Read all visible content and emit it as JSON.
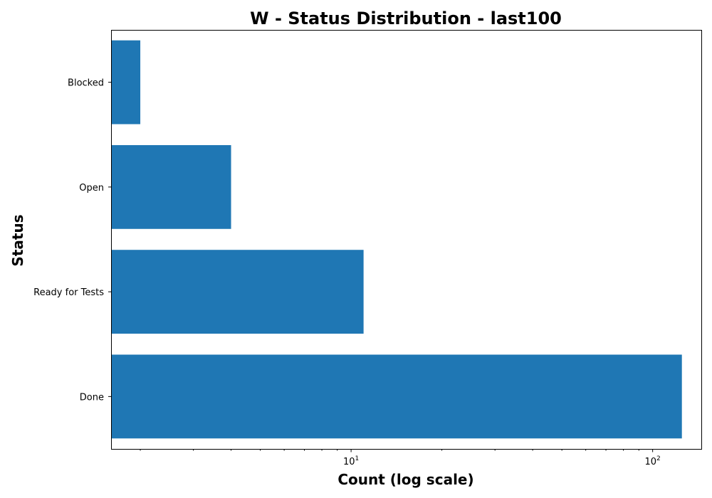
{
  "chart_data": {
    "type": "bar",
    "orientation": "horizontal",
    "title": "W - Status Distribution - last100",
    "xlabel": "Count (log scale)",
    "ylabel": "Status",
    "x_scale": "log",
    "xlim": [
      1.6,
      145
    ],
    "categories": [
      "Done",
      "Ready for Tests",
      "Open",
      "Blocked"
    ],
    "values": [
      125,
      11,
      4,
      2
    ],
    "x_ticks": [
      {
        "value": 10,
        "base": "10",
        "exponent": "1"
      },
      {
        "value": 100,
        "base": "10",
        "exponent": "2"
      }
    ],
    "bar_color": "#1f77b4",
    "grid": false,
    "legend": false
  }
}
